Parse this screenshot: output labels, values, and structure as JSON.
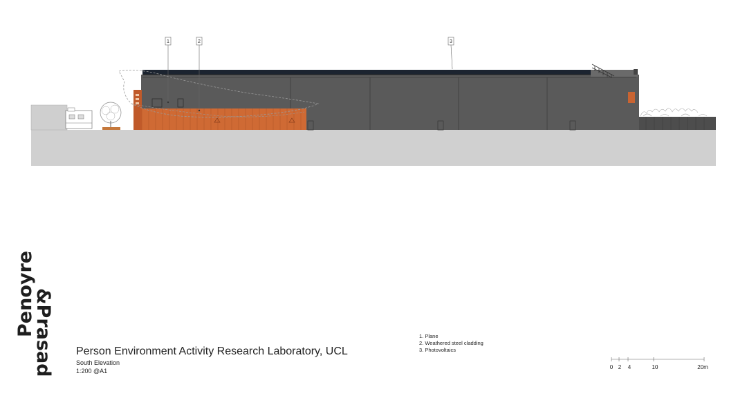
{
  "practice": {
    "line1": "Penoyre",
    "line2": "&Prasad"
  },
  "project": {
    "title": "Person Environment Activity Research Laboratory, UCL",
    "view": "South Elevation",
    "scale": "1:200 @A1"
  },
  "callouts": [
    "1",
    "2",
    "3"
  ],
  "legend": [
    "1. Plane",
    "2. Weathered steel cladding",
    "3. Photovoltaics"
  ],
  "scale_bar": {
    "labels": [
      "0",
      "2",
      "4",
      "10",
      "20m"
    ]
  },
  "colors": {
    "ground": "#d0d0d0",
    "building": "#5a5a5a",
    "weathered_steel": "#cf6a34",
    "pv_strip": "#1c2430",
    "fence": "#4d4d4d"
  }
}
